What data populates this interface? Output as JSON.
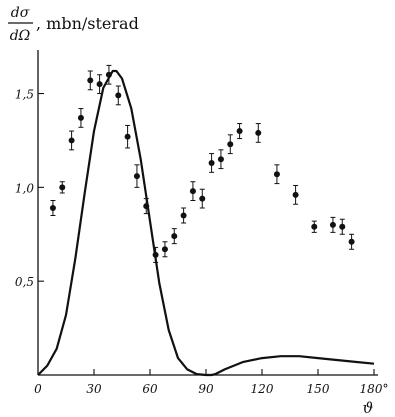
{
  "chart_data": {
    "type": "scatter",
    "title": "",
    "ylabel": {
      "numerator": "dσ",
      "denominator": "dΩ",
      "unit": ", mbn/sterad"
    },
    "xlabel": "ϑ",
    "xlim": [
      0,
      180
    ],
    "ylim": [
      0,
      1.7
    ],
    "x_ticks": [
      0,
      30,
      60,
      90,
      120,
      150,
      180
    ],
    "x_tick_labels": [
      "0",
      "30",
      "60",
      "90",
      "120",
      "150",
      "180°"
    ],
    "y_ticks": [
      0.5,
      1.0,
      1.5
    ],
    "y_tick_labels": [
      "0,5",
      "1,0",
      "1,5"
    ],
    "grid": false,
    "series": [
      {
        "kind": "points_with_errorbars",
        "points": [
          {
            "x": 8,
            "y": 0.89,
            "err": 0.04
          },
          {
            "x": 13,
            "y": 1.0,
            "err": 0.03
          },
          {
            "x": 18,
            "y": 1.25,
            "err": 0.05
          },
          {
            "x": 23,
            "y": 1.37,
            "err": 0.05
          },
          {
            "x": 28,
            "y": 1.57,
            "err": 0.05
          },
          {
            "x": 33,
            "y": 1.55,
            "err": 0.05
          },
          {
            "x": 38,
            "y": 1.6,
            "err": 0.05
          },
          {
            "x": 43,
            "y": 1.49,
            "err": 0.05
          },
          {
            "x": 48,
            "y": 1.27,
            "err": 0.06
          },
          {
            "x": 53,
            "y": 1.06,
            "err": 0.06
          },
          {
            "x": 58,
            "y": 0.9,
            "err": 0.04
          },
          {
            "x": 63,
            "y": 0.64,
            "err": 0.04
          },
          {
            "x": 68,
            "y": 0.67,
            "err": 0.04
          },
          {
            "x": 73,
            "y": 0.74,
            "err": 0.04
          },
          {
            "x": 78,
            "y": 0.85,
            "err": 0.04
          },
          {
            "x": 83,
            "y": 0.98,
            "err": 0.05
          },
          {
            "x": 88,
            "y": 0.94,
            "err": 0.05
          },
          {
            "x": 93,
            "y": 1.13,
            "err": 0.05
          },
          {
            "x": 98,
            "y": 1.15,
            "err": 0.05
          },
          {
            "x": 103,
            "y": 1.23,
            "err": 0.05
          },
          {
            "x": 108,
            "y": 1.3,
            "err": 0.04
          },
          {
            "x": 118,
            "y": 1.29,
            "err": 0.05
          },
          {
            "x": 128,
            "y": 1.07,
            "err": 0.05
          },
          {
            "x": 138,
            "y": 0.96,
            "err": 0.05
          },
          {
            "x": 148,
            "y": 0.79,
            "err": 0.03
          },
          {
            "x": 158,
            "y": 0.8,
            "err": 0.04
          },
          {
            "x": 163,
            "y": 0.79,
            "err": 0.04
          },
          {
            "x": 168,
            "y": 0.71,
            "err": 0.04
          }
        ]
      },
      {
        "kind": "curve",
        "x": [
          0,
          5,
          10,
          15,
          20,
          25,
          30,
          35,
          40,
          42,
          45,
          50,
          55,
          60,
          65,
          70,
          75,
          80,
          85,
          90,
          93,
          95,
          100,
          110,
          120,
          130,
          140,
          150,
          160,
          170,
          180
        ],
        "y": [
          0.0,
          0.05,
          0.14,
          0.32,
          0.62,
          0.97,
          1.3,
          1.53,
          1.62,
          1.62,
          1.58,
          1.42,
          1.15,
          0.82,
          0.49,
          0.24,
          0.09,
          0.03,
          0.005,
          0.0,
          0.0,
          0.005,
          0.03,
          0.07,
          0.09,
          0.1,
          0.1,
          0.09,
          0.08,
          0.07,
          0.06
        ]
      }
    ]
  }
}
